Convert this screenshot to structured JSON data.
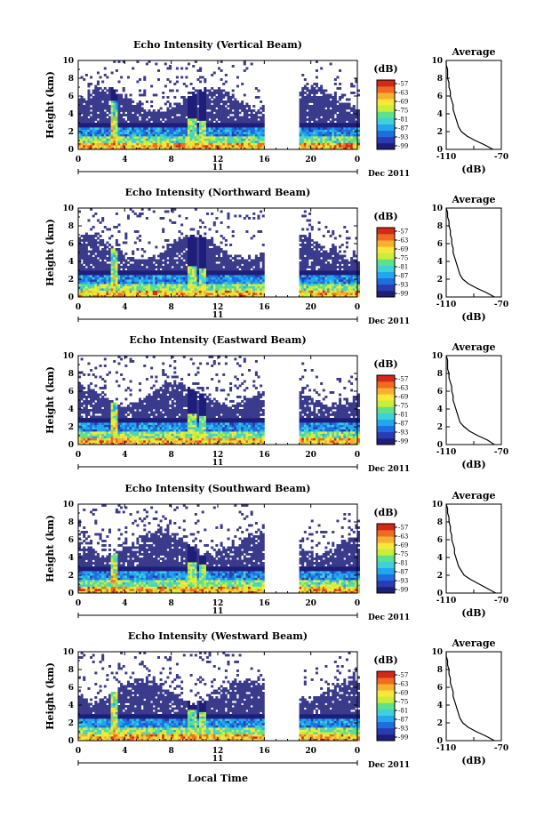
{
  "x_axis_title": "Local Time",
  "colorbar_unit": "(dB)",
  "colorbar_tick_labels": [
    "-57",
    "-63",
    "-69",
    "-75",
    "-81",
    "-87",
    "-93",
    "-99"
  ],
  "colorbar_colors": [
    "#1e1e7a",
    "#2b3bb0",
    "#1f6ee0",
    "#22a7ee",
    "#3fd1d8",
    "#5fe08a",
    "#c8ee3a",
    "#f7e83a",
    "#f8b030",
    "#f06a20",
    "#d52818"
  ],
  "background_color": "#3b3b8c",
  "date_label": "Dec 2011",
  "date_day": "11",
  "avg_panel_title": "Average",
  "avg_panel_unit": "(dB)",
  "avg_x_ticks": [
    "-110",
    "-70"
  ],
  "chart_data": [
    {
      "type": "heatmap",
      "title": "Echo Intensity (Vertical Beam)",
      "ylabel": "Height (km)",
      "xlabel": "",
      "x_ticks": [
        "0",
        "4",
        "8",
        "12",
        "16",
        "20",
        "0"
      ],
      "xlim": [
        0,
        24
      ],
      "y_ticks": [
        "0",
        "2",
        "4",
        "6",
        "8",
        "10"
      ],
      "ylim": [
        0,
        10
      ],
      "data_gap_hours": [
        16.1,
        18.9
      ],
      "color_range_db": [
        -99,
        -57
      ],
      "average_profile": {
        "x_range_db": [
          -110,
          -70
        ],
        "height_km": [
          0,
          0.5,
          1,
          1.5,
          2,
          2.5,
          3,
          3.5,
          4,
          4.5,
          5,
          5.5,
          6,
          6.5,
          7,
          7.5,
          8,
          8.5,
          9,
          9.5,
          10
        ],
        "intensity_db": [
          -76,
          -82,
          -89,
          -95,
          -99,
          -101,
          -102,
          -103,
          -104,
          -105,
          -105,
          -106,
          -107,
          -107,
          -108,
          -108,
          -109,
          -109,
          -109,
          -110,
          -110
        ]
      }
    },
    {
      "type": "heatmap",
      "title": "Echo Intensity (Northward Beam)",
      "ylabel": "Height (km)",
      "xlabel": "",
      "x_ticks": [
        "0",
        "4",
        "8",
        "12",
        "16",
        "20",
        "0"
      ],
      "xlim": [
        0,
        24
      ],
      "y_ticks": [
        "0",
        "2",
        "4",
        "6",
        "8",
        "10"
      ],
      "ylim": [
        0,
        10
      ],
      "data_gap_hours": [
        16.1,
        18.9
      ],
      "color_range_db": [
        -99,
        -57
      ],
      "average_profile": {
        "x_range_db": [
          -110,
          -70
        ],
        "height_km": [
          0,
          0.5,
          1,
          1.5,
          2,
          2.5,
          3,
          3.5,
          4,
          4.5,
          5,
          5.5,
          6,
          6.5,
          7,
          7.5,
          8,
          8.5,
          9,
          9.5,
          10
        ],
        "intensity_db": [
          -75,
          -81,
          -88,
          -94,
          -98,
          -100,
          -101,
          -102,
          -103,
          -104,
          -105,
          -105,
          -106,
          -106,
          -107,
          -107,
          -108,
          -108,
          -109,
          -109,
          -110
        ]
      }
    },
    {
      "type": "heatmap",
      "title": "Echo Intensity (Eastward Beam)",
      "ylabel": "Height (km)",
      "xlabel": "",
      "x_ticks": [
        "0",
        "4",
        "8",
        "12",
        "16",
        "20",
        "0"
      ],
      "xlim": [
        0,
        24
      ],
      "y_ticks": [
        "0",
        "2",
        "4",
        "6",
        "8",
        "10"
      ],
      "ylim": [
        0,
        10
      ],
      "data_gap_hours": [
        16.1,
        18.9
      ],
      "color_range_db": [
        -99,
        -57
      ],
      "average_profile": {
        "x_range_db": [
          -110,
          -70
        ],
        "height_km": [
          0,
          0.5,
          1,
          1.5,
          2,
          2.5,
          3,
          3.5,
          4,
          4.5,
          5,
          5.5,
          6,
          6.5,
          7,
          7.5,
          8,
          8.5,
          9,
          9.5,
          10
        ],
        "intensity_db": [
          -75,
          -80,
          -87,
          -93,
          -97,
          -100,
          -101,
          -102,
          -103,
          -104,
          -105,
          -105,
          -106,
          -106,
          -107,
          -108,
          -108,
          -109,
          -109,
          -109,
          -110
        ]
      }
    },
    {
      "type": "heatmap",
      "title": "Echo Intensity (Southward Beam)",
      "ylabel": "Height (km)",
      "xlabel": "",
      "x_ticks": [
        "0",
        "4",
        "8",
        "12",
        "16",
        "20",
        "0"
      ],
      "xlim": [
        0,
        24
      ],
      "y_ticks": [
        "0",
        "2",
        "4",
        "6",
        "8",
        "10"
      ],
      "ylim": [
        0,
        10
      ],
      "data_gap_hours": [
        16.1,
        18.9
      ],
      "color_range_db": [
        -99,
        -57
      ],
      "average_profile": {
        "x_range_db": [
          -110,
          -70
        ],
        "height_km": [
          0,
          0.5,
          1,
          1.5,
          2,
          2.5,
          3,
          3.5,
          4,
          4.5,
          5,
          5.5,
          6,
          6.5,
          7,
          7.5,
          8,
          8.5,
          9,
          9.5,
          10
        ],
        "intensity_db": [
          -74,
          -80,
          -86,
          -92,
          -97,
          -99,
          -101,
          -102,
          -103,
          -104,
          -104,
          -105,
          -106,
          -106,
          -107,
          -107,
          -108,
          -108,
          -109,
          -109,
          -110
        ]
      }
    },
    {
      "type": "heatmap",
      "title": "Echo Intensity (Westward Beam)",
      "ylabel": "Height (km)",
      "xlabel": "Local Time",
      "x_ticks": [
        "0",
        "4",
        "8",
        "12",
        "16",
        "20",
        "0"
      ],
      "xlim": [
        0,
        24
      ],
      "y_ticks": [
        "0",
        "2",
        "4",
        "6",
        "8",
        "10"
      ],
      "ylim": [
        0,
        10
      ],
      "data_gap_hours": [
        16.1,
        18.9
      ],
      "color_range_db": [
        -99,
        -57
      ],
      "average_profile": {
        "x_range_db": [
          -110,
          -70
        ],
        "height_km": [
          0,
          0.5,
          1,
          1.5,
          2,
          2.5,
          3,
          3.5,
          4,
          4.5,
          5,
          5.5,
          6,
          6.5,
          7,
          7.5,
          8,
          8.5,
          9,
          9.5,
          10
        ],
        "intensity_db": [
          -75,
          -81,
          -88,
          -94,
          -98,
          -100,
          -101,
          -102,
          -103,
          -104,
          -105,
          -105,
          -106,
          -107,
          -107,
          -108,
          -108,
          -109,
          -109,
          -110,
          -110
        ]
      }
    }
  ]
}
